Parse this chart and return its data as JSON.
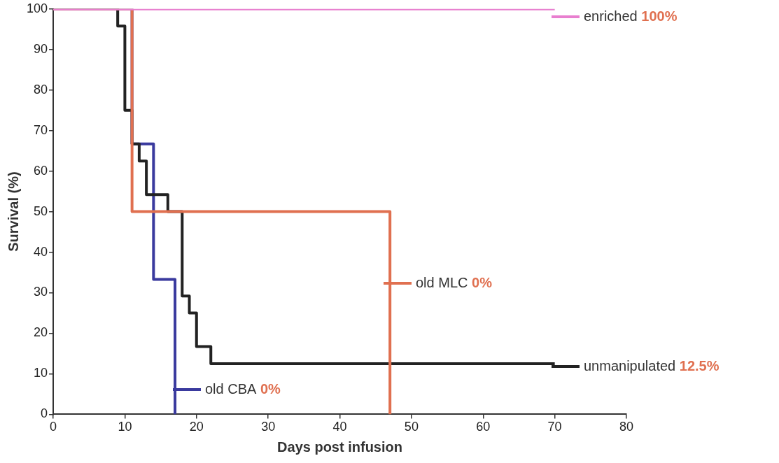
{
  "chart_data": {
    "type": "step",
    "xlabel": "Days post infusion",
    "ylabel": "Survival (%)",
    "xlim": [
      0,
      80
    ],
    "xticks": [
      0,
      10,
      20,
      30,
      40,
      50,
      60,
      70,
      80
    ],
    "ylim": [
      0,
      100
    ],
    "yticks": [
      0,
      10,
      20,
      30,
      40,
      50,
      60,
      70,
      80,
      90,
      100
    ],
    "grid": false,
    "legend": "right",
    "marker": "none",
    "line_style": "solid",
    "series": [
      {
        "name": "enriched",
        "color": "#e87fcf",
        "x": [
          0,
          70
        ],
        "values": [
          100,
          100
        ]
      },
      {
        "name": "old MLC",
        "color": "#e07050",
        "x": [
          0,
          11,
          47
        ],
        "values": [
          100,
          50,
          0
        ]
      },
      {
        "name": "unmanipulated",
        "color": "#222222",
        "x": [
          0,
          9,
          10,
          11,
          12,
          13,
          16,
          18,
          19,
          20,
          22,
          64,
          65,
          70
        ],
        "values": [
          100,
          95.8,
          75,
          66.7,
          62.5,
          54.2,
          50,
          29.2,
          25,
          16.7,
          12.5,
          12.5,
          12.5,
          12.5
        ]
      },
      {
        "name": "old CBA",
        "color": "#3a3a9e",
        "x": [
          0,
          11,
          14,
          17
        ],
        "values": [
          100,
          66.7,
          33.3,
          0
        ]
      }
    ],
    "annotations": [
      "100%",
      "0%",
      "12.5%",
      "0%"
    ]
  }
}
